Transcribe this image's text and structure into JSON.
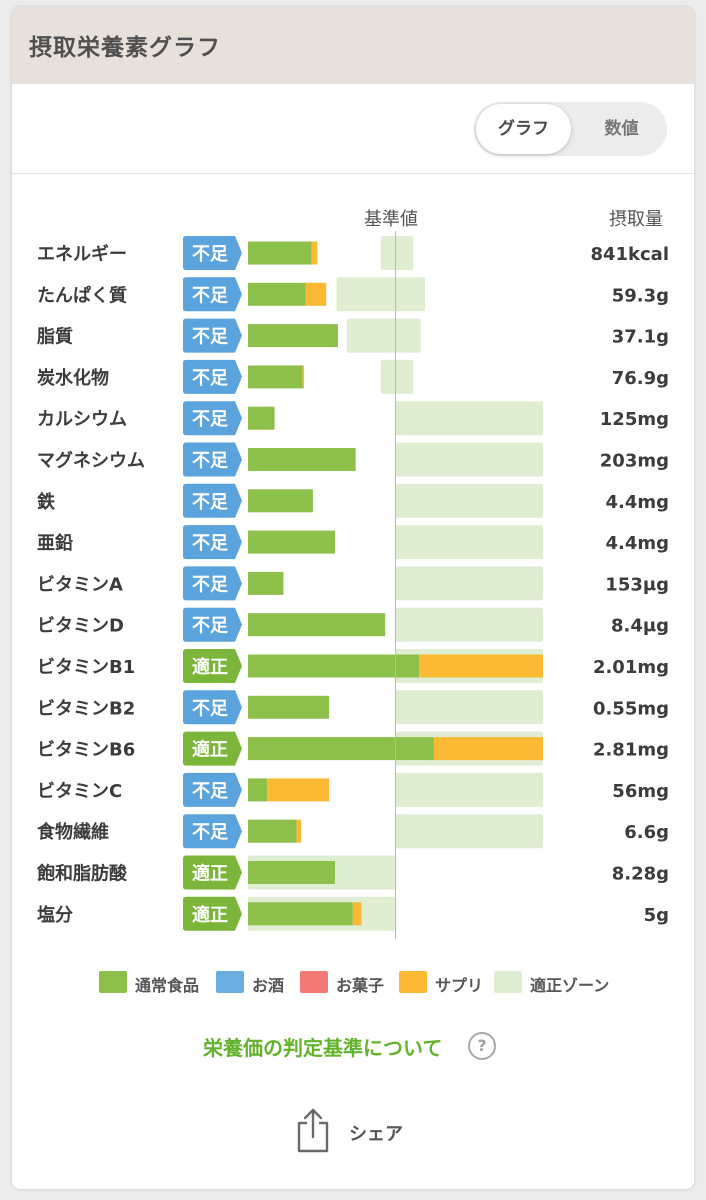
{
  "header": {
    "title": "摂取栄養素グラフ"
  },
  "toggle": {
    "graph_label": "グラフ",
    "number_label": "数値"
  },
  "columns": {
    "reference_label": "基準値",
    "intake_label": "摂取量"
  },
  "colors": {
    "food": "#8cc04a",
    "alcohol": "#6aaee0",
    "sweets": "#f47a7a",
    "supplement": "#fbb934",
    "zone": "#dfeed3",
    "badge_insufficient": "#5aa3dc",
    "badge_adequate": "#7bb63a"
  },
  "chart_data": {
    "type": "bar",
    "orientation": "horizontal",
    "stacked": true,
    "categories": [
      "エネルギー",
      "たんぱく質",
      "脂質",
      "炭水化物",
      "カルシウム",
      "マグネシウム",
      "鉄",
      "亜鉛",
      "ビタミンA",
      "ビタミンD",
      "ビタミンB1",
      "ビタミンB2",
      "ビタミンB6",
      "ビタミンC",
      "食物繊維",
      "飽和脂肪酸",
      "塩分"
    ],
    "status": [
      "不足",
      "不足",
      "不足",
      "不足",
      "不足",
      "不足",
      "不足",
      "不足",
      "不足",
      "不足",
      "適正",
      "不足",
      "適正",
      "不足",
      "不足",
      "適正",
      "適正"
    ],
    "intake": [
      "841kcal",
      "59.3g",
      "37.1g",
      "76.9g",
      "125mg",
      "203mg",
      "4.4mg",
      "4.4mg",
      "153μg",
      "8.4μg",
      "2.01mg",
      "0.55mg",
      "2.81mg",
      "56mg",
      "6.6g",
      "8.28g",
      "5g"
    ],
    "series": [
      {
        "name": "通常食品",
        "values": [
          43,
          39,
          61,
          37,
          18,
          73,
          44,
          59,
          24,
          93,
          116,
          55,
          126,
          13,
          33,
          59,
          71
        ]
      },
      {
        "name": "お酒",
        "values": [
          0,
          0,
          0,
          0,
          0,
          0,
          0,
          0,
          0,
          0,
          0,
          0,
          0,
          0,
          0,
          0,
          0
        ]
      },
      {
        "name": "お菓子",
        "values": [
          0,
          0,
          0,
          0,
          0,
          0,
          0,
          0,
          0,
          0,
          0,
          0,
          0,
          0,
          0,
          0,
          0
        ]
      },
      {
        "name": "サプリ",
        "values": [
          4,
          14,
          0,
          1,
          0,
          0,
          0,
          0,
          0,
          0,
          84,
          0,
          74,
          42,
          3,
          0,
          6
        ]
      }
    ],
    "adequate_zone": [
      [
        90,
        112
      ],
      [
        60,
        120
      ],
      [
        67,
        117
      ],
      [
        90,
        112
      ],
      [
        100,
        200
      ],
      [
        100,
        200
      ],
      [
        100,
        200
      ],
      [
        100,
        200
      ],
      [
        100,
        200
      ],
      [
        100,
        200
      ],
      [
        100,
        200
      ],
      [
        100,
        200
      ],
      [
        100,
        200
      ],
      [
        100,
        200
      ],
      [
        100,
        200
      ],
      [
        0,
        100
      ],
      [
        0,
        100
      ]
    ],
    "reference_line": 100,
    "xlim": [
      0,
      200
    ],
    "legend": {
      "position": "bottom",
      "items": [
        "通常食品",
        "お酒",
        "お菓子",
        "サプリ",
        "適正ゾーン"
      ]
    }
  },
  "footer": {
    "link_text": "栄養価の判定基準について",
    "help_icon": "?",
    "share_label": "シェア",
    "share_icon": "share-icon"
  }
}
